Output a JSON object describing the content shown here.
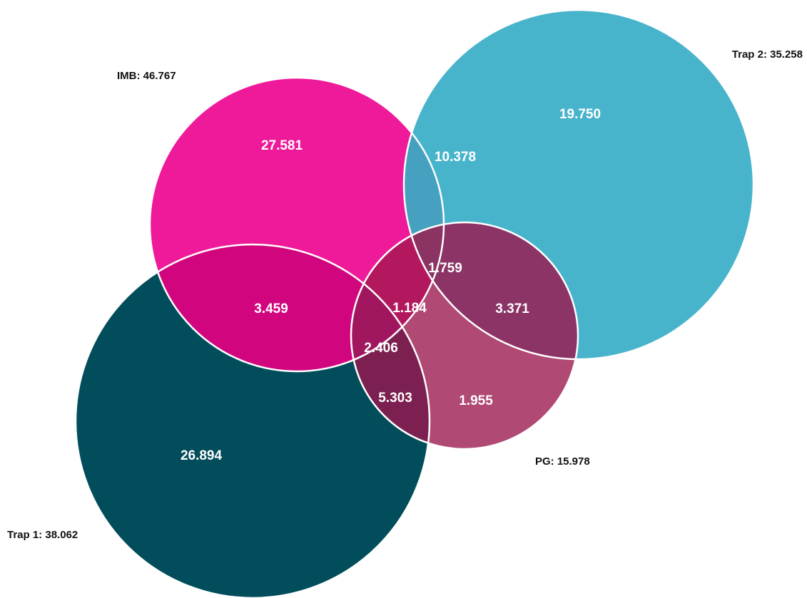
{
  "chart_data": {
    "type": "venn",
    "title": "",
    "sets": [
      {
        "key": "imb",
        "name": "IMB",
        "label": "IMB: 46.767",
        "total": 46.767,
        "color": "#ef1a9a"
      },
      {
        "key": "trap2",
        "name": "Trap 2",
        "label": "Trap 2: 35.258",
        "total": 35.258,
        "color": "#48b4cb"
      },
      {
        "key": "trap1",
        "name": "Trap 1",
        "label": "Trap 1: 38.062",
        "total": 38.062,
        "color": "#024d5b"
      },
      {
        "key": "pg",
        "name": "PG",
        "label": "PG: 15.978",
        "total": 15.978,
        "color": "#b04973"
      }
    ],
    "regions": [
      {
        "sets": [
          "imb"
        ],
        "value": 27.581,
        "label": "27.581"
      },
      {
        "sets": [
          "trap2"
        ],
        "value": 19.75,
        "label": "19.750"
      },
      {
        "sets": [
          "trap1"
        ],
        "value": 26.894,
        "label": "26.894"
      },
      {
        "sets": [
          "pg"
        ],
        "value": 1.955,
        "label": "1.955"
      },
      {
        "sets": [
          "imb",
          "trap2"
        ],
        "value": 10.378,
        "label": "10.378",
        "color": "#46a0c0"
      },
      {
        "sets": [
          "imb",
          "trap1"
        ],
        "value": 3.459,
        "label": "3.459",
        "color": "#d1067f"
      },
      {
        "sets": [
          "trap1",
          "pg"
        ],
        "value": 5.303,
        "label": "5.303",
        "color": "#7b2050"
      },
      {
        "sets": [
          "trap2",
          "pg"
        ],
        "value": 3.371,
        "label": "3.371",
        "color": "#8b3465"
      },
      {
        "sets": [
          "imb",
          "trap2",
          "pg"
        ],
        "value": 1.759,
        "label": "1.759",
        "color": "#8b3363"
      },
      {
        "sets": [
          "imb",
          "trap1",
          "pg"
        ],
        "value": 2.406,
        "label": "2.406",
        "color": "#a1175f"
      },
      {
        "sets": [
          "imb",
          "pg"
        ],
        "value": 1.184,
        "label": "1.184",
        "color": "#b3185f"
      }
    ]
  }
}
